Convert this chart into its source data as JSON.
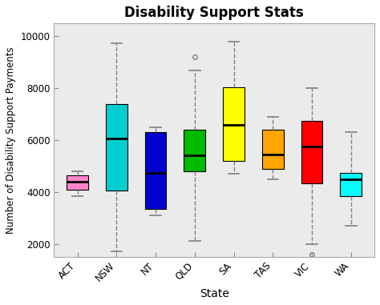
{
  "title": "Disability Support Stats",
  "xlabel": "State",
  "ylabel": "Number of Disability Support Payments",
  "categories": [
    "ACT",
    "NSW",
    "NT",
    "QLD",
    "SA",
    "TAS",
    "VIC",
    "WA"
  ],
  "colors": [
    "#FF85C8",
    "#00CED1",
    "#0000CC",
    "#00BB00",
    "#FFFF00",
    "#FFA500",
    "#FF0000",
    "#00FFFF"
  ],
  "ylim": [
    1500,
    10500
  ],
  "yticks": [
    2000,
    4000,
    6000,
    8000,
    10000
  ],
  "plot_bg_color": "#EBEBEB",
  "fig_bg_color": "#FFFFFF",
  "box_data": [
    {
      "q1": 4100,
      "median": 4400,
      "q3": 4650,
      "whislo": 3850,
      "whishi": 4800,
      "fliers": []
    },
    {
      "q1": 4050,
      "median": 6050,
      "q3": 7400,
      "whislo": 1700,
      "whishi": 9750,
      "fliers": []
    },
    {
      "q1": 3350,
      "median": 4750,
      "q3": 6300,
      "whislo": 3100,
      "whishi": 6500,
      "fliers": []
    },
    {
      "q1": 4800,
      "median": 5400,
      "q3": 6400,
      "whislo": 2100,
      "whishi": 8700,
      "fliers": [
        9200
      ]
    },
    {
      "q1": 5200,
      "median": 6600,
      "q3": 8050,
      "whislo": 4700,
      "whishi": 9800,
      "fliers": []
    },
    {
      "q1": 4900,
      "median": 5450,
      "q3": 6400,
      "whislo": 4500,
      "whishi": 6900,
      "fliers": []
    },
    {
      "q1": 4350,
      "median": 5750,
      "q3": 6750,
      "whislo": 2000,
      "whishi": 8000,
      "fliers": [
        1600
      ]
    },
    {
      "q1": 3850,
      "median": 4500,
      "q3": 4750,
      "whislo": 2700,
      "whishi": 6300,
      "fliers": []
    }
  ]
}
